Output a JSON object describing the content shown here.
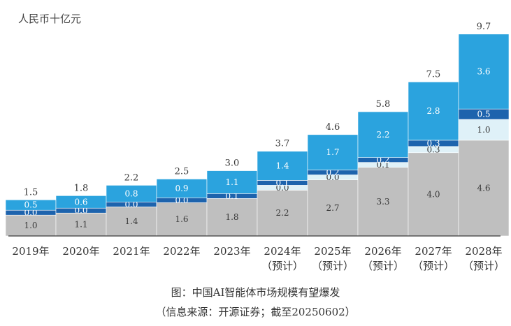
{
  "caption": {
    "title": "图：中国AI智能体市场规模有望爆发",
    "source": "（信息来源：开源证券；截至20250602）"
  },
  "colors": {
    "gray": "#bfbfbf",
    "dark_blue": "#1d63ad",
    "light_blue": "#2ba3de",
    "pale": "#dff1f8",
    "axis": "#555555",
    "label_light": "#ffffff",
    "label_dark": "#3a3a3a"
  },
  "chart_data": {
    "type": "bar",
    "stacked": true,
    "unit_label": "人民币十亿元",
    "categories": [
      "2019年",
      "2020年",
      "2021年",
      "2022年",
      "2023年",
      "2024年",
      "2025年",
      "2026年",
      "2027年",
      "2028年"
    ],
    "category_sub": [
      "",
      "",
      "",
      "",
      "",
      "（预计）",
      "（预计）",
      "（预计）",
      "（预计）",
      "（预计）"
    ],
    "series": [
      {
        "name": "gray_segment",
        "color": "#bfbfbf",
        "label_color": "#3a3a3a",
        "values": [
          1.0,
          1.1,
          1.4,
          1.6,
          1.8,
          2.2,
          2.7,
          3.3,
          4.0,
          4.6
        ]
      },
      {
        "name": "pale_segment",
        "color": "#dff1f8",
        "label_color": "#3a3a3a",
        "values": [
          null,
          null,
          null,
          null,
          null,
          0.0,
          0.0,
          0.1,
          0.3,
          1.0
        ]
      },
      {
        "name": "dark_blue_segment",
        "color": "#1d63ad",
        "label_color": "#ffffff",
        "values": [
          0.0,
          0.0,
          0.0,
          0.0,
          0.1,
          0.1,
          0.2,
          0.2,
          0.3,
          0.5
        ]
      },
      {
        "name": "light_blue_segment",
        "color": "#2ba3de",
        "label_color": "#ffffff",
        "values": [
          0.5,
          0.6,
          0.8,
          0.9,
          1.1,
          1.4,
          1.7,
          2.2,
          2.8,
          3.6
        ]
      }
    ],
    "totals": [
      1.5,
      1.8,
      2.2,
      2.5,
      3.0,
      3.7,
      4.6,
      5.8,
      7.5,
      9.7
    ],
    "ylim": [
      0,
      10.5
    ],
    "grid": false,
    "legend": "none"
  }
}
